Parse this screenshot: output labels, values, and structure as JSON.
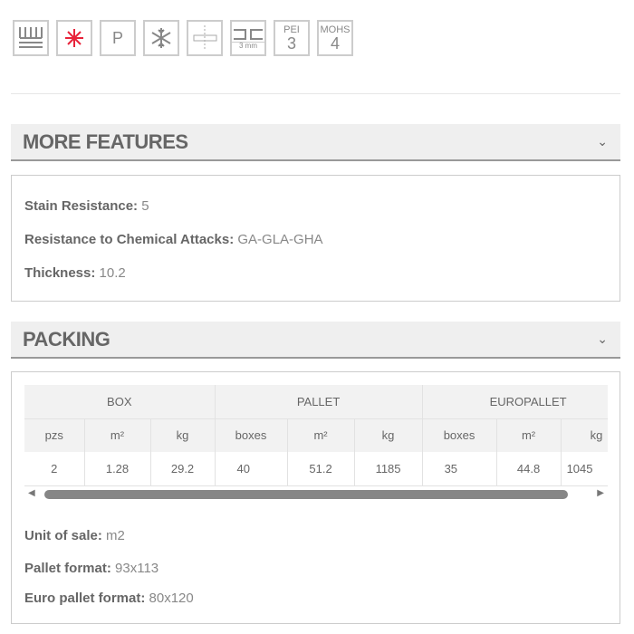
{
  "icons": [
    {
      "name": "underfloor-heating-icon"
    },
    {
      "name": "laser-cut-icon",
      "color": "#e8233a"
    },
    {
      "name": "p-icon",
      "label": "P"
    },
    {
      "name": "frost-resistant-icon"
    },
    {
      "name": "rectified-icon"
    },
    {
      "name": "joint-icon",
      "label": "3 mm"
    },
    {
      "name": "pei-icon",
      "label": "PEI",
      "value": "3"
    },
    {
      "name": "mohs-icon",
      "label": "MOHS",
      "value": "4"
    }
  ],
  "more_features": {
    "title": "MORE FEATURES",
    "items": [
      {
        "label": "Stain Resistance:",
        "value": "5"
      },
      {
        "label": "Resistance to Chemical Attacks:",
        "value": "GA-GLA-GHA"
      },
      {
        "label": "Thickness:",
        "value": "10.2"
      }
    ]
  },
  "packing": {
    "title": "PACKING",
    "groups": [
      "BOX",
      "PALLET",
      "EUROPALLET"
    ],
    "columns": [
      "pzs",
      "m²",
      "kg",
      "boxes",
      "m²",
      "kg",
      "boxes",
      "m²",
      "kg"
    ],
    "values": [
      "2",
      "1.28",
      "29.2",
      "40",
      "51.2",
      "1185",
      "35",
      "44.8",
      "1045"
    ],
    "items": [
      {
        "label": "Unit of sale:",
        "value": "m2"
      },
      {
        "label": "Pallet format:",
        "value": "93x113"
      },
      {
        "label": "Euro pallet format:",
        "value": "80x120"
      }
    ]
  }
}
